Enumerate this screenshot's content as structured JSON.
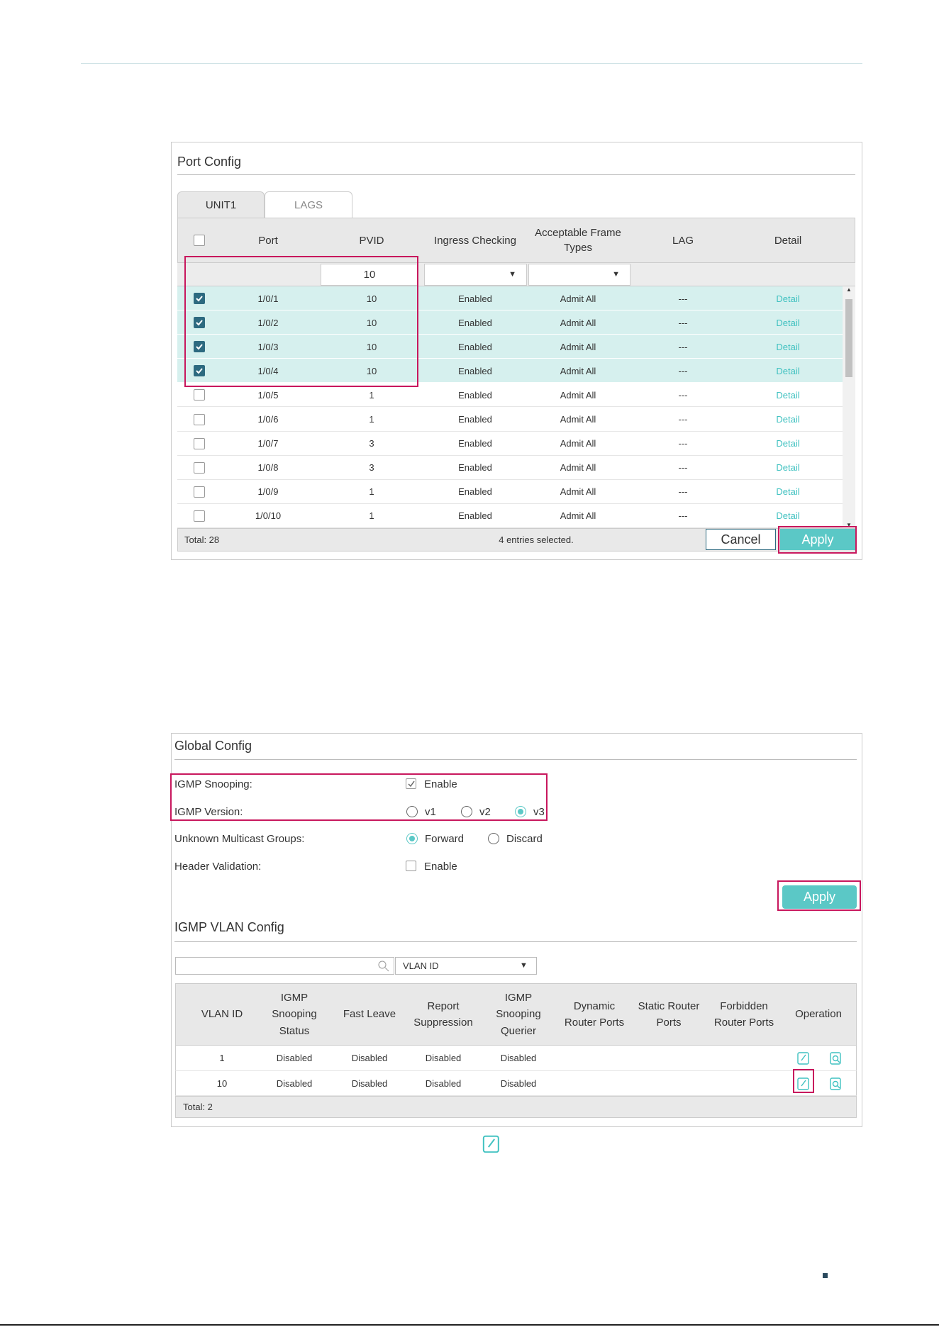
{
  "port_config": {
    "title": "Port Config",
    "tabs": [
      "UNIT1",
      "LAGS"
    ],
    "columns": [
      "Port",
      "PVID",
      "Ingress Checking",
      "Acceptable Frame Types",
      "LAG",
      "Detail"
    ],
    "filter_pvid": "10",
    "rows": [
      {
        "checked": true,
        "cells": [
          "1/0/1",
          "10",
          "Enabled",
          "Admit All",
          "---",
          "Detail"
        ]
      },
      {
        "checked": true,
        "cells": [
          "1/0/2",
          "10",
          "Enabled",
          "Admit All",
          "---",
          "Detail"
        ]
      },
      {
        "checked": true,
        "cells": [
          "1/0/3",
          "10",
          "Enabled",
          "Admit All",
          "---",
          "Detail"
        ]
      },
      {
        "checked": true,
        "cells": [
          "1/0/4",
          "10",
          "Enabled",
          "Admit All",
          "---",
          "Detail"
        ]
      },
      {
        "checked": false,
        "cells": [
          "1/0/5",
          "1",
          "Enabled",
          "Admit All",
          "---",
          "Detail"
        ]
      },
      {
        "checked": false,
        "cells": [
          "1/0/6",
          "1",
          "Enabled",
          "Admit All",
          "---",
          "Detail"
        ]
      },
      {
        "checked": false,
        "cells": [
          "1/0/7",
          "3",
          "Enabled",
          "Admit All",
          "---",
          "Detail"
        ]
      },
      {
        "checked": false,
        "cells": [
          "1/0/8",
          "3",
          "Enabled",
          "Admit All",
          "---",
          "Detail"
        ]
      },
      {
        "checked": false,
        "cells": [
          "1/0/9",
          "1",
          "Enabled",
          "Admit All",
          "---",
          "Detail"
        ]
      },
      {
        "checked": false,
        "cells": [
          "1/0/10",
          "1",
          "Enabled",
          "Admit All",
          "---",
          "Detail"
        ]
      }
    ],
    "total": "Total: 28",
    "status": "4 entries selected.",
    "cancel": "Cancel",
    "apply": "Apply"
  },
  "global_config": {
    "title": "Global Config",
    "settings": [
      {
        "label": "IGMP Snooping:",
        "kind": "checkbox",
        "options": [
          {
            "text": "Enable",
            "selected": true
          }
        ]
      },
      {
        "label": "IGMP Version:",
        "kind": "radio",
        "options": [
          {
            "text": "v1",
            "selected": false
          },
          {
            "text": "v2",
            "selected": false
          },
          {
            "text": "v3",
            "selected": true
          }
        ]
      },
      {
        "label": "Unknown Multicast Groups:",
        "kind": "radio",
        "options": [
          {
            "text": "Forward",
            "selected": true
          },
          {
            "text": "Discard",
            "selected": false
          }
        ]
      },
      {
        "label": "Header Validation:",
        "kind": "checkbox",
        "options": [
          {
            "text": "Enable",
            "selected": false
          }
        ]
      }
    ],
    "apply": "Apply"
  },
  "igmp_vlan_config": {
    "title": "IGMP VLAN Config",
    "search_field": "VLAN ID",
    "columns": [
      "VLAN ID",
      "IGMP Snooping Status",
      "Fast Leave",
      "Report Suppression",
      "IGMP Snooping Querier",
      "Dynamic Router Ports",
      "Static Router Ports",
      "Forbidden Router Ports",
      "Operation"
    ],
    "rows": [
      [
        "1",
        "Disabled",
        "Disabled",
        "Disabled",
        "Disabled"
      ],
      [
        "10",
        "Disabled",
        "Disabled",
        "Disabled",
        "Disabled"
      ]
    ],
    "total": "Total: 2"
  }
}
